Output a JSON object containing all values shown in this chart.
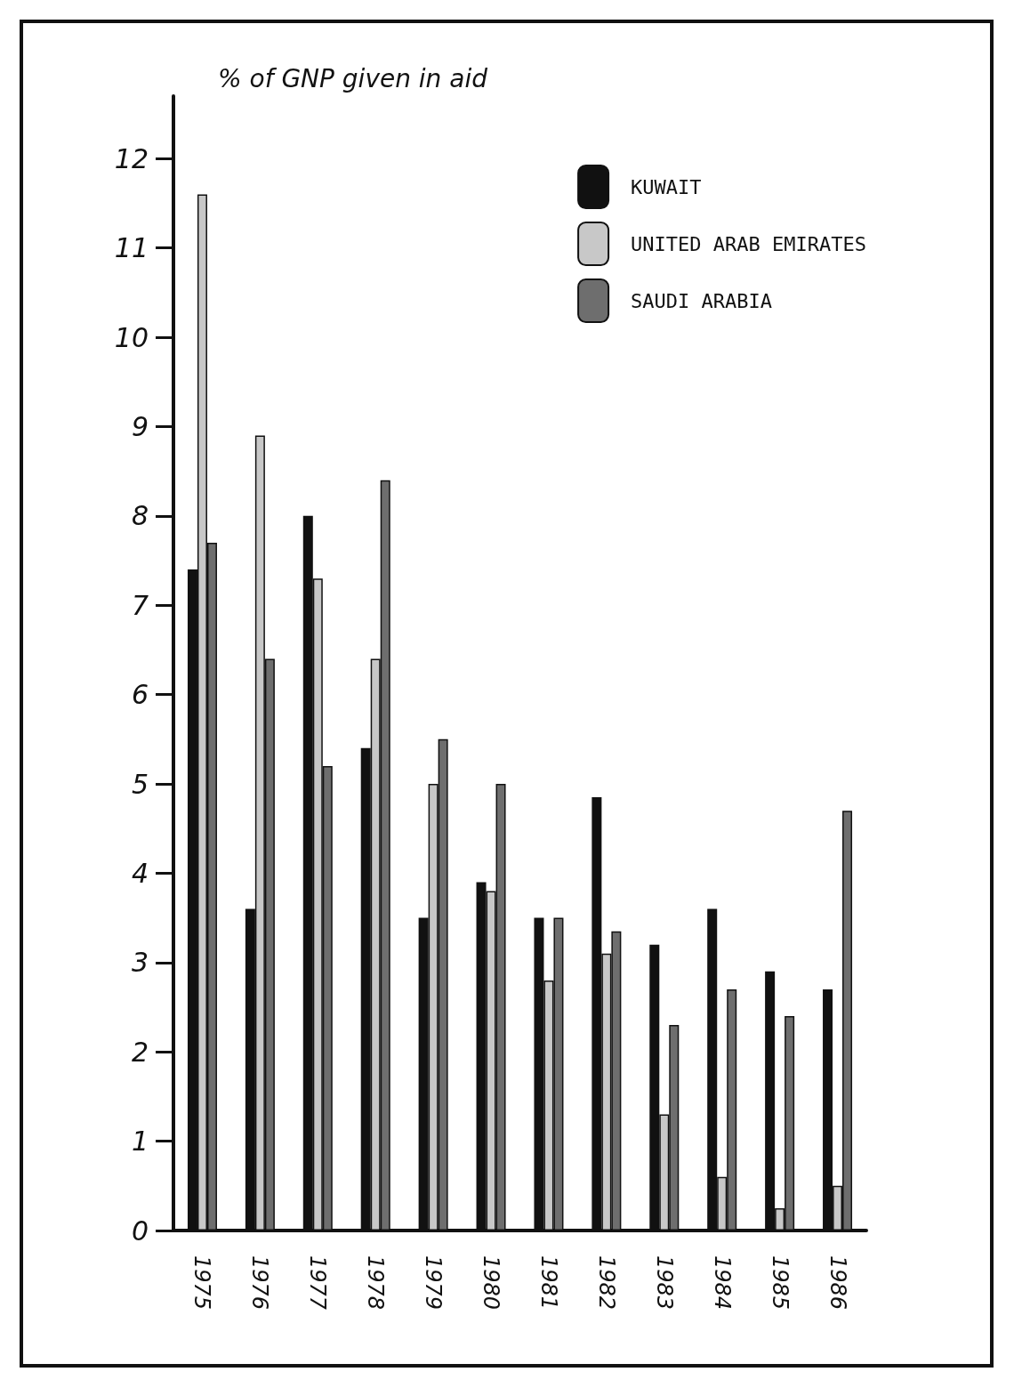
{
  "chart_data": {
    "type": "bar",
    "ylabel": "% of GNP given in aid",
    "categories": [
      "1975",
      "1976",
      "1977",
      "1978",
      "1979",
      "1980",
      "1981",
      "1982",
      "1983",
      "1984",
      "1985",
      "1986"
    ],
    "series": [
      {
        "name": "KUWAIT",
        "color": "#111111",
        "values": [
          7.4,
          3.6,
          8.0,
          5.4,
          3.5,
          3.9,
          3.5,
          4.85,
          3.2,
          3.6,
          2.9,
          2.7
        ]
      },
      {
        "name": "UNITED ARAB EMIRATES",
        "color": "#c8c8c8",
        "values": [
          11.6,
          8.9,
          7.3,
          6.4,
          5.0,
          3.8,
          2.8,
          3.1,
          1.3,
          0.6,
          0.25,
          0.5
        ]
      },
      {
        "name": "SAUDI ARABIA",
        "color": "#6e6e6e",
        "values": [
          7.7,
          6.4,
          5.2,
          8.4,
          5.5,
          5.0,
          3.5,
          3.35,
          2.3,
          2.7,
          2.4,
          4.7
        ]
      }
    ],
    "ylim": [
      0,
      12.7
    ],
    "yticks": [
      0,
      1,
      2,
      3,
      4,
      5,
      6,
      7,
      8,
      9,
      10,
      11,
      12
    ],
    "grid": false,
    "legend": "top right"
  }
}
